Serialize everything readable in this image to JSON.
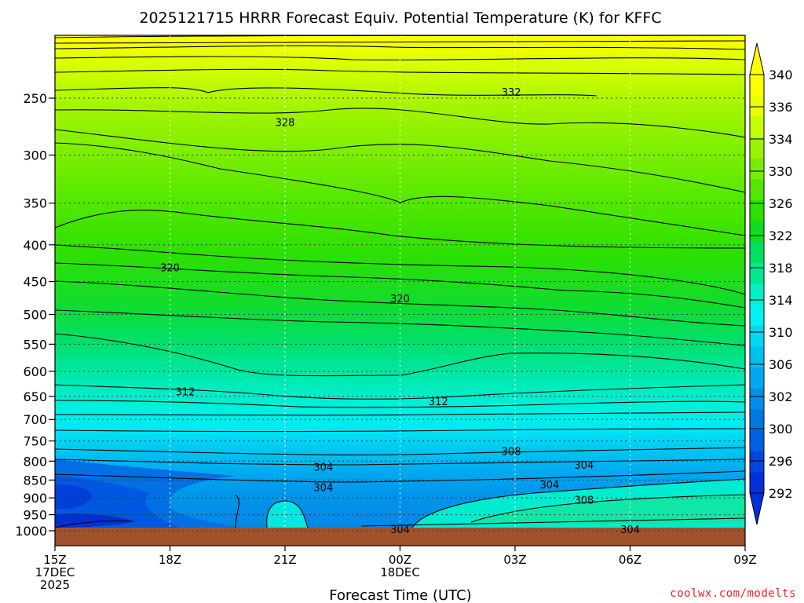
{
  "chart_data": {
    "type": "contour",
    "title": "2025121715 HRRR Forecast Equiv. Potential Temperature (K) for KFFC",
    "xlabel": "Forecast Time (UTC)",
    "ylabel": "",
    "x_ticks": [
      "15Z",
      "18Z",
      "21Z",
      "00Z",
      "03Z",
      "06Z",
      "09Z"
    ],
    "x_tick_hours": [
      15,
      18,
      21,
      24,
      27,
      30,
      33
    ],
    "x_date_labels": [
      {
        "tick": "15Z",
        "lines": [
          "17DEC",
          "2025"
        ]
      },
      {
        "tick": "00Z",
        "lines": [
          "18DEC"
        ]
      }
    ],
    "y_ticks": [
      250,
      300,
      350,
      400,
      450,
      500,
      550,
      600,
      650,
      700,
      750,
      800,
      850,
      900,
      950,
      1000
    ],
    "y_axis": "pressure_hPa_log",
    "ylim": [
      200,
      1000
    ],
    "xlim": [
      15,
      33
    ],
    "colorbar": {
      "labels": [
        340,
        336,
        334,
        330,
        326,
        322,
        318,
        314,
        310,
        306,
        302,
        300,
        296,
        292
      ],
      "colors": [
        "#ffff00",
        "#e8ff00",
        "#c6ff00",
        "#9cf200",
        "#78ee00",
        "#52e800",
        "#2ee000",
        "#10dc20",
        "#00e060",
        "#00e890",
        "#00f0c8",
        "#00f2f2",
        "#00d8f0",
        "#00c0f0",
        "#00a8f0",
        "#0090e8",
        "#0078e0",
        "#0060e0",
        "#0046dc",
        "#0030d8"
      ]
    },
    "contour_labels": [
      {
        "value": "332",
        "hour": 26.9,
        "pressure": 245
      },
      {
        "value": "328",
        "hour": 21.0,
        "pressure": 270
      },
      {
        "value": "320",
        "hour": 18.0,
        "pressure": 430
      },
      {
        "value": "320",
        "hour": 24.0,
        "pressure": 475
      },
      {
        "value": "312",
        "hour": 18.4,
        "pressure": 640
      },
      {
        "value": "312",
        "hour": 25.0,
        "pressure": 660
      },
      {
        "value": "308",
        "hour": 26.9,
        "pressure": 775
      },
      {
        "value": "304",
        "hour": 22.0,
        "pressure": 815
      },
      {
        "value": "304",
        "hour": 28.8,
        "pressure": 810
      },
      {
        "value": "304",
        "hour": 22.0,
        "pressure": 870
      },
      {
        "value": "304",
        "hour": 27.9,
        "pressure": 862
      },
      {
        "value": "308",
        "hour": 28.8,
        "pressure": 905
      },
      {
        "value": "304",
        "hour": 24.0,
        "pressure": 995
      },
      {
        "value": "304",
        "hour": 30.0,
        "pressure": 995
      }
    ],
    "grid": true
  },
  "credit": "coolwx.com/modelts"
}
